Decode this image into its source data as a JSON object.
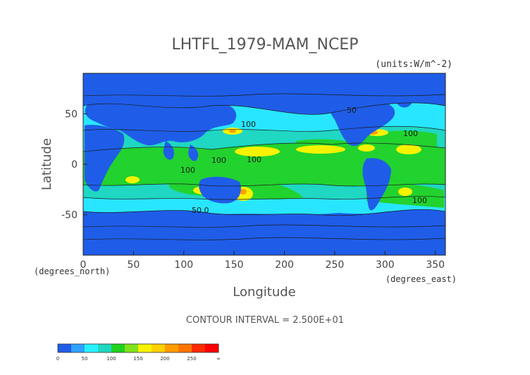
{
  "chart_data": {
    "type": "heatmap",
    "title": "LHTFL_1979-MAM_NCEP",
    "subtitle": "(units:W/m^-2)",
    "xlabel": "Longitude",
    "ylabel": "Latitude",
    "x_unit_label": "(degrees_east)",
    "y_unit_label": "(degrees_north)",
    "xlim": [
      0,
      360
    ],
    "ylim": [
      -90,
      90
    ],
    "x_ticks": [
      0,
      50,
      100,
      150,
      200,
      250,
      300,
      350
    ],
    "y_ticks": [
      50,
      0,
      -50
    ],
    "contour_interval_text": "CONTOUR INTERVAL = 2.500E+01",
    "contour_labels": [
      "100",
      "100",
      "100",
      "50.0",
      "100",
      "100",
      "100",
      "50"
    ],
    "colorbar": {
      "levels": [
        "0",
        "50",
        "100",
        "150",
        "200",
        "250",
        "∞"
      ],
      "colors": [
        "#1f5de8",
        "#2fa2ff",
        "#28f2ff",
        "#1fd7c2",
        "#1fd21f",
        "#7fe31c",
        "#f6f300",
        "#ffd100",
        "#ff9d00",
        "#ff7400",
        "#ff2a00",
        "#ff0000"
      ]
    },
    "scale_colors": {
      "ocean_low": "#1f5de8",
      "mid": "#26d3f2",
      "green": "#22d22e",
      "yellow": "#f7f300",
      "orange": "#ff9e00",
      "red": "#ff1c00"
    }
  }
}
